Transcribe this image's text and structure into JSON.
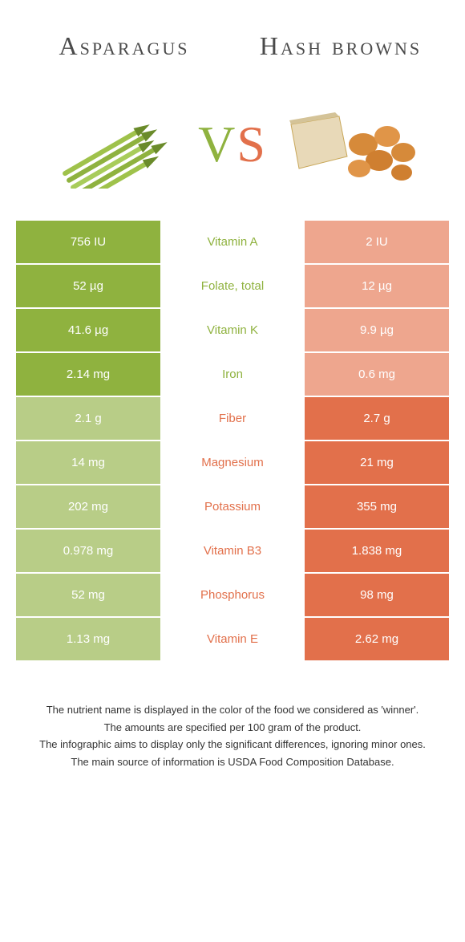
{
  "header": {
    "left_title": "Asparagus",
    "right_title": "Hash browns"
  },
  "vs": {
    "v": "V",
    "s": "S"
  },
  "colors": {
    "green": "#8fb23f",
    "green_dim": "#b8cd87",
    "orange": "#e2704b",
    "orange_dim": "#eea68e"
  },
  "rows": [
    {
      "label": "Vitamin A",
      "left": "756 IU",
      "right": "2 IU",
      "winner": "left"
    },
    {
      "label": "Folate, total",
      "left": "52 µg",
      "right": "12 µg",
      "winner": "left"
    },
    {
      "label": "Vitamin K",
      "left": "41.6 µg",
      "right": "9.9 µg",
      "winner": "left"
    },
    {
      "label": "Iron",
      "left": "2.14 mg",
      "right": "0.6 mg",
      "winner": "left"
    },
    {
      "label": "Fiber",
      "left": "2.1 g",
      "right": "2.7 g",
      "winner": "right"
    },
    {
      "label": "Magnesium",
      "left": "14 mg",
      "right": "21 mg",
      "winner": "right"
    },
    {
      "label": "Potassium",
      "left": "202 mg",
      "right": "355 mg",
      "winner": "right"
    },
    {
      "label": "Vitamin B3",
      "left": "0.978 mg",
      "right": "1.838 mg",
      "winner": "right"
    },
    {
      "label": "Phosphorus",
      "left": "52 mg",
      "right": "98 mg",
      "winner": "right"
    },
    {
      "label": "Vitamin E",
      "left": "1.13 mg",
      "right": "2.62 mg",
      "winner": "right"
    }
  ],
  "footnotes": [
    "The nutrient name is displayed in the color of the food we considered as 'winner'.",
    "The amounts are specified per 100 gram of the product.",
    "The infographic aims to display only the significant differences, ignoring minor ones.",
    "The main source of information is USDA Food Composition Database."
  ]
}
